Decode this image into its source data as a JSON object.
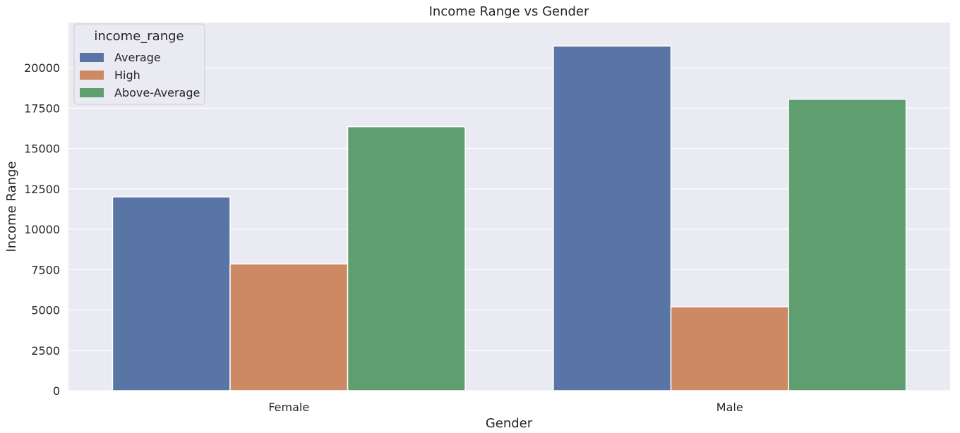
{
  "chart_data": {
    "type": "bar",
    "title": "Income Range vs Gender",
    "xlabel": "Gender",
    "ylabel": "Income Range",
    "categories": [
      "Female",
      "Male"
    ],
    "series": [
      {
        "name": "Average",
        "values": [
          12000,
          21350
        ],
        "color": "#5875a6"
      },
      {
        "name": "High",
        "values": [
          7850,
          5200
        ],
        "color": "#cc8963"
      },
      {
        "name": "Above-Average",
        "values": [
          16350,
          18050
        ],
        "color": "#5f9e6e"
      }
    ],
    "ylim": [
      0,
      22800
    ],
    "yticks": [
      0,
      2500,
      5000,
      7500,
      10000,
      12500,
      15000,
      17500,
      20000
    ],
    "grid": true,
    "legend": {
      "title": "income_range",
      "position": "top-left"
    },
    "background": "#eaeaf2"
  }
}
